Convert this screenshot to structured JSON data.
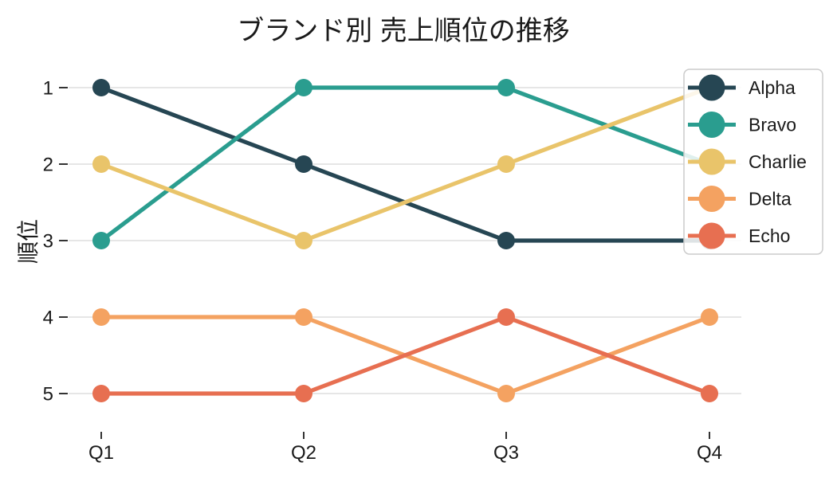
{
  "chart_data": {
    "type": "line",
    "variant": "bump-rank-chart",
    "title": "ブランド別 売上順位の推移",
    "xlabel": "",
    "ylabel": "順位",
    "x_categories": [
      "Q1",
      "Q2",
      "Q3",
      "Q4"
    ],
    "y_ticks": [
      "1",
      "2",
      "3",
      "4",
      "5"
    ],
    "ylim": [
      1,
      5
    ],
    "y_axis_inverted": true,
    "grid": "horizontal-only",
    "legend_position": "upper-right",
    "series": [
      {
        "name": "Alpha",
        "color": "#264653",
        "values": [
          1,
          2,
          3,
          3
        ]
      },
      {
        "name": "Bravo",
        "color": "#2a9d8f",
        "values": [
          3,
          1,
          1,
          2
        ]
      },
      {
        "name": "Charlie",
        "color": "#e9c46a",
        "values": [
          2,
          3,
          2,
          1
        ]
      },
      {
        "name": "Delta",
        "color": "#f4a261",
        "values": [
          4,
          4,
          5,
          4
        ]
      },
      {
        "name": "Echo",
        "color": "#e76f51",
        "values": [
          5,
          5,
          4,
          5
        ]
      }
    ]
  },
  "colors": {
    "background": "#ffffff",
    "grid": "#d6d6d6",
    "tick": "#333333",
    "text": "#1a1a1a",
    "legend_fill": "#ffffff",
    "legend_border": "#cccccc"
  }
}
